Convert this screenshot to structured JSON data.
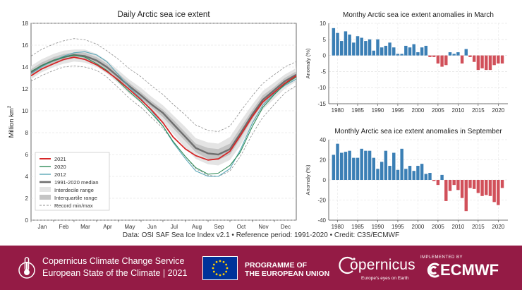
{
  "chart_data": [
    {
      "type": "line",
      "title": "Daily Arctic sea ice extent",
      "ylabel": "Million km",
      "ylabel_sup": "2",
      "ylim": [
        0,
        18
      ],
      "yticks": [
        0,
        2,
        4,
        6,
        8,
        10,
        12,
        14,
        16,
        18
      ],
      "x_months": [
        "Jan",
        "Feb",
        "Mar",
        "Apr",
        "May",
        "Jun",
        "Jul",
        "Aug",
        "Sep",
        "Oct",
        "Nov",
        "Dec"
      ],
      "x_day": [
        1,
        15,
        32,
        46,
        60,
        75,
        91,
        105,
        121,
        135,
        152,
        166,
        182,
        196,
        213,
        227,
        244,
        258,
        274,
        288,
        305,
        319,
        335,
        349,
        365
      ],
      "median": [
        13.5,
        14.1,
        14.6,
        14.9,
        15.1,
        15.0,
        14.6,
        14.0,
        13.1,
        12.3,
        11.4,
        10.6,
        9.8,
        8.8,
        7.6,
        6.6,
        6.1,
        6.0,
        6.5,
        7.9,
        9.7,
        11.0,
        11.9,
        12.7,
        13.3
      ],
      "interquartile_lower": [
        13.2,
        13.8,
        14.3,
        14.6,
        14.8,
        14.7,
        14.3,
        13.7,
        12.8,
        12.0,
        11.1,
        10.3,
        9.4,
        8.4,
        7.2,
        6.2,
        5.6,
        5.5,
        6.0,
        7.4,
        9.3,
        10.6,
        11.5,
        12.3,
        13.0
      ],
      "interquartile_upper": [
        13.8,
        14.4,
        14.9,
        15.2,
        15.3,
        15.3,
        14.9,
        14.3,
        13.4,
        12.6,
        11.7,
        10.9,
        10.1,
        9.2,
        8.0,
        7.0,
        6.6,
        6.5,
        7.0,
        8.4,
        10.1,
        11.4,
        12.2,
        13.0,
        13.6
      ],
      "interdecile_lower": [
        12.9,
        13.5,
        14.0,
        14.3,
        14.5,
        14.4,
        14.0,
        13.4,
        12.5,
        11.6,
        10.7,
        9.9,
        9.0,
        7.9,
        6.6,
        5.6,
        5.1,
        5.0,
        5.5,
        6.8,
        8.8,
        10.1,
        11.1,
        12.0,
        12.7
      ],
      "interdecile_upper": [
        14.1,
        14.7,
        15.2,
        15.5,
        15.6,
        15.6,
        15.2,
        14.6,
        13.7,
        12.9,
        12.1,
        11.3,
        10.5,
        9.6,
        8.5,
        7.5,
        7.1,
        7.0,
        7.6,
        9.0,
        10.6,
        11.8,
        12.6,
        13.3,
        13.9
      ],
      "record_min": [
        12.7,
        13.2,
        13.7,
        14.0,
        14.1,
        14.0,
        13.7,
        13.1,
        12.1,
        11.2,
        10.3,
        9.4,
        8.4,
        7.2,
        5.8,
        4.7,
        4.1,
        4.0,
        4.5,
        5.8,
        7.9,
        9.4,
        10.6,
        11.6,
        12.3
      ],
      "record_max": [
        15.0,
        15.6,
        16.1,
        16.4,
        16.6,
        16.5,
        16.1,
        15.5,
        14.7,
        13.9,
        13.1,
        12.3,
        11.5,
        10.6,
        9.6,
        8.7,
        8.2,
        8.1,
        8.6,
        9.9,
        11.4,
        12.5,
        13.3,
        14.0,
        14.5
      ],
      "series": [
        {
          "name": "2021",
          "color": "#d62728",
          "values": [
            13.2,
            13.8,
            14.3,
            14.7,
            14.9,
            14.7,
            14.2,
            13.6,
            12.8,
            12.0,
            11.0,
            10.1,
            8.9,
            7.6,
            6.5,
            5.9,
            5.5,
            5.6,
            6.3,
            7.7,
            9.5,
            10.8,
            11.7,
            12.5,
            13.2
          ]
        },
        {
          "name": "2020",
          "color": "#2e8b57",
          "values": [
            13.6,
            14.1,
            14.6,
            14.9,
            15.1,
            14.9,
            14.3,
            13.7,
            12.7,
            11.8,
            10.8,
            9.8,
            8.6,
            7.2,
            5.8,
            4.8,
            4.2,
            4.3,
            5.0,
            6.2,
            8.6,
            10.3,
            11.5,
            12.4,
            13.1
          ]
        },
        {
          "name": "2012",
          "color": "#5aa7b7",
          "values": [
            13.4,
            14.0,
            14.6,
            15.0,
            15.3,
            15.4,
            15.1,
            14.5,
            13.3,
            12.2,
            11.1,
            10.0,
            8.6,
            7.1,
            5.6,
            4.5,
            4.0,
            4.0,
            4.7,
            6.4,
            8.9,
            10.5,
            11.6,
            12.3,
            12.9
          ]
        }
      ],
      "legend": {
        "position": "lower-left",
        "entries": [
          "2021",
          "2020",
          "2012",
          "1991-2020 median",
          "Interdecile range",
          "Interquartile range",
          "Record min/max"
        ]
      },
      "grid": true
    },
    {
      "type": "bar",
      "title": "Monthy Arctic sea ice extent anomalies in March",
      "ylabel": "Anomaly (%)",
      "ylim": [
        -15,
        10
      ],
      "yticks": [
        -15,
        -10,
        -5,
        0,
        5,
        10
      ],
      "x": [
        1979,
        1980,
        1981,
        1982,
        1983,
        1984,
        1985,
        1986,
        1987,
        1988,
        1989,
        1990,
        1991,
        1992,
        1993,
        1994,
        1995,
        1996,
        1997,
        1998,
        1999,
        2000,
        2001,
        2002,
        2003,
        2004,
        2005,
        2006,
        2007,
        2008,
        2009,
        2010,
        2011,
        2012,
        2013,
        2014,
        2015,
        2016,
        2017,
        2018,
        2019,
        2020,
        2021
      ],
      "values": [
        8.5,
        7.0,
        4.5,
        7.5,
        6.5,
        4.0,
        6.0,
        5.5,
        4.5,
        5.0,
        1.5,
        5.0,
        2.5,
        3.0,
        4.0,
        2.5,
        0.5,
        0.5,
        3.0,
        2.5,
        3.5,
        1.0,
        2.5,
        3.0,
        -0.5,
        -0.5,
        -2.5,
        -3.5,
        -3.0,
        1.0,
        0.5,
        1.0,
        -2.5,
        2.0,
        -0.5,
        -2.0,
        -4.5,
        -4.0,
        -4.5,
        -4.5,
        -3.0,
        -2.5,
        -2.5
      ],
      "positive_color": "#3b7fb5",
      "negative_color": "#d1505a",
      "xticks": [
        1980,
        1985,
        1990,
        1995,
        2000,
        2005,
        2010,
        2015,
        2020
      ],
      "grid": true
    },
    {
      "type": "bar",
      "title": "Monthly Arctic sea ice extent anomalies in September",
      "ylabel": "Anomaly (%)",
      "ylim": [
        -40,
        40
      ],
      "yticks": [
        -40,
        -20,
        0,
        20,
        40
      ],
      "x": [
        1979,
        1980,
        1981,
        1982,
        1983,
        1984,
        1985,
        1986,
        1987,
        1988,
        1989,
        1990,
        1991,
        1992,
        1993,
        1994,
        1995,
        1996,
        1997,
        1998,
        1999,
        2000,
        2001,
        2002,
        2003,
        2004,
        2005,
        2006,
        2007,
        2008,
        2009,
        2010,
        2011,
        2012,
        2013,
        2014,
        2015,
        2016,
        2017,
        2018,
        2019,
        2020,
        2021
      ],
      "values": [
        25,
        36,
        27,
        28,
        29,
        22,
        22,
        31,
        29,
        29,
        22,
        11,
        18,
        29,
        14,
        27,
        10,
        31,
        11,
        14,
        9,
        14,
        16,
        6,
        7,
        -1,
        -5,
        5,
        -21,
        -11,
        -5,
        -10,
        -18,
        -31,
        -8,
        -9,
        -13,
        -16,
        -15,
        -16,
        -22,
        -25,
        -8
      ],
      "positive_color": "#3b7fb5",
      "negative_color": "#d1505a",
      "xticks": [
        1980,
        1985,
        1990,
        1995,
        2000,
        2005,
        2010,
        2015,
        2020
      ],
      "grid": true
    }
  ],
  "caption": "Data: OSI SAF Sea Ice Index v2.1 • Reference period: 1991-2020 • Credit: C3S/ECMWF",
  "footer": {
    "c3s_line1": "Copernicus Climate Change Service",
    "c3s_line2": "European State of the Climate | 2021",
    "eu_line1": "PROGRAMME OF",
    "eu_line2": "THE EUROPEAN UNION",
    "copernicus": "opernicus",
    "copernicus_tagline": "Europe's eyes on Earth",
    "implemented_by": "IMPLEMENTED BY",
    "ecmwf": "ECMWF",
    "background": "#941b45"
  }
}
